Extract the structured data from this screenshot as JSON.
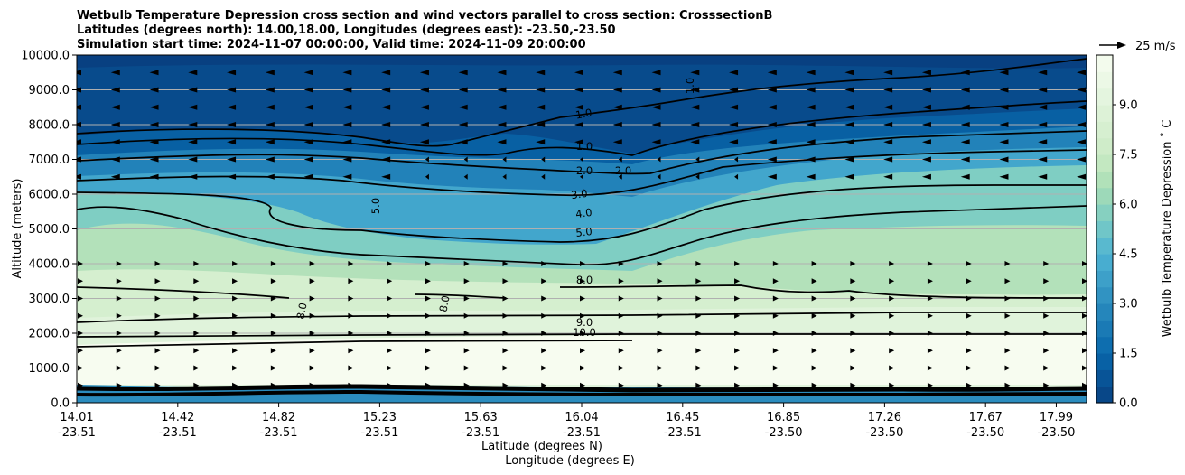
{
  "chart_data": {
    "type": "contour",
    "title_lines": [
      "Wetbulb Temperature Depression cross section and wind vectors parallel to cross section: CrosssectionB",
      "Latitudes (degrees north): 14.00,18.00, Longitudes (degrees east): -23.50,-23.50",
      "Simulation start time: 2024-11-07 00:00:00, Valid time: 2024-11-09 20:00:00"
    ],
    "ylabel": "Altitude (meters)",
    "xlabel_1": "Latitude (degrees N)",
    "xlabel_2": "Longitude (degrees E)",
    "ylim": [
      0,
      10000
    ],
    "y_ticks": [
      "0.0",
      "1000.0",
      "2000.0",
      "3000.0",
      "4000.0",
      "5000.0",
      "6000.0",
      "7000.0",
      "8000.0",
      "9000.0",
      "10000.0"
    ],
    "y_tick_values": [
      0,
      1000,
      2000,
      3000,
      4000,
      5000,
      6000,
      7000,
      8000,
      9000,
      10000
    ],
    "x_ticks": [
      {
        "lat": "14.01",
        "lon": "-23.51"
      },
      {
        "lat": "14.42",
        "lon": "-23.51"
      },
      {
        "lat": "14.82",
        "lon": "-23.51"
      },
      {
        "lat": "15.23",
        "lon": "-23.51"
      },
      {
        "lat": "15.63",
        "lon": "-23.51"
      },
      {
        "lat": "16.04",
        "lon": "-23.51"
      },
      {
        "lat": "16.45",
        "lon": "-23.51"
      },
      {
        "lat": "16.85",
        "lon": "-23.50"
      },
      {
        "lat": "17.26",
        "lon": "-23.50"
      },
      {
        "lat": "17.67",
        "lon": "-23.50"
      },
      {
        "lat": "17.99",
        "lon": "-23.50"
      }
    ],
    "x_tick_positions": [
      0,
      0.1,
      0.2,
      0.3,
      0.4,
      0.5,
      0.6,
      0.7,
      0.8,
      0.9,
      0.97
    ],
    "colorbar": {
      "label": "Wetbulb Temperature Depression ˚ C",
      "ticks": [
        "0.0",
        "1.5",
        "3.0",
        "4.5",
        "6.0",
        "7.5",
        "9.0"
      ],
      "tick_values": [
        0,
        1.5,
        3,
        4.5,
        6,
        7.5,
        9
      ],
      "range": [
        0,
        10.5
      ],
      "colormap": "GnBu_r"
    },
    "quiver_key": {
      "label": "25 m/s",
      "speed": 25
    },
    "wind_rows": [
      {
        "altitude": 9500,
        "direction": "west"
      },
      {
        "altitude": 9000,
        "direction": "west"
      },
      {
        "altitude": 8500,
        "direction": "west"
      },
      {
        "altitude": 8000,
        "direction": "west"
      },
      {
        "altitude": 7500,
        "direction": "west"
      },
      {
        "altitude": 7000,
        "direction": "west"
      },
      {
        "altitude": 6500,
        "direction": "west"
      },
      {
        "altitude": 4000,
        "direction": "east"
      },
      {
        "altitude": 3500,
        "direction": "east"
      },
      {
        "altitude": 3000,
        "direction": "east"
      },
      {
        "altitude": 2500,
        "direction": "east"
      },
      {
        "altitude": 2000,
        "direction": "east"
      },
      {
        "altitude": 1500,
        "direction": "east"
      },
      {
        "altitude": 1000,
        "direction": "east"
      },
      {
        "altitude": 500,
        "direction": "east"
      }
    ],
    "contour_labels": [
      "1.0",
      "1.0",
      "2.0",
      "2.0",
      "3.0",
      "4.0",
      "5.0",
      "5.0",
      "8.0",
      "8.0",
      "8.0",
      "9.0",
      "10.0",
      "1.0"
    ],
    "bands": [
      {
        "altitude_range": [
          0,
          500
        ],
        "value": 2.0
      },
      {
        "altitude_range": [
          500,
          1900
        ],
        "value": 10.5
      },
      {
        "altitude_range": [
          1900,
          4000
        ],
        "value": 8.0
      },
      {
        "altitude_range": [
          4000,
          6000
        ],
        "value": 6.5
      },
      {
        "altitude_range": [
          6000,
          7500
        ],
        "value": 3.5
      },
      {
        "altitude_range": [
          7500,
          10000
        ],
        "value": 0.5
      }
    ]
  }
}
